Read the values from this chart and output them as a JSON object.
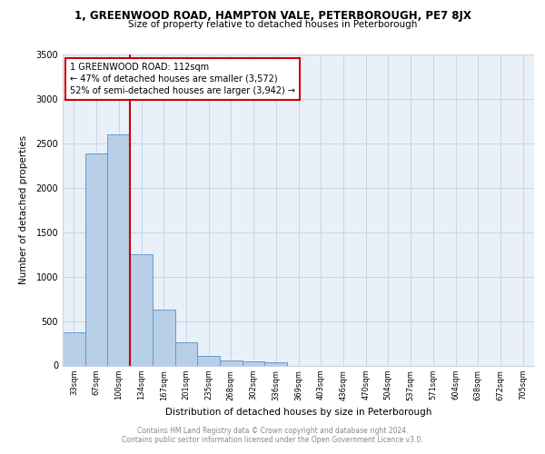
{
  "title_line1": "1, GREENWOOD ROAD, HAMPTON VALE, PETERBOROUGH, PE7 8JX",
  "title_line2": "Size of property relative to detached houses in Peterborough",
  "xlabel": "Distribution of detached houses by size in Peterborough",
  "ylabel": "Number of detached properties",
  "footnote1": "Contains HM Land Registry data © Crown copyright and database right 2024.",
  "footnote2": "Contains public sector information licensed under the Open Government Licence v3.0.",
  "bar_labels": [
    "33sqm",
    "67sqm",
    "100sqm",
    "134sqm",
    "167sqm",
    "201sqm",
    "235sqm",
    "268sqm",
    "302sqm",
    "336sqm",
    "369sqm",
    "403sqm",
    "436sqm",
    "470sqm",
    "504sqm",
    "537sqm",
    "571sqm",
    "604sqm",
    "638sqm",
    "672sqm",
    "705sqm"
  ],
  "bar_values": [
    370,
    2390,
    2600,
    1250,
    630,
    260,
    105,
    55,
    45,
    35,
    0,
    0,
    0,
    0,
    0,
    0,
    0,
    0,
    0,
    0,
    0
  ],
  "bar_color": "#b8cfe8",
  "bar_edgecolor": "#6699cc",
  "vline_x": 2.5,
  "vline_color": "#cc0000",
  "annotation_text": "1 GREENWOOD ROAD: 112sqm\n← 47% of detached houses are smaller (3,572)\n52% of semi-detached houses are larger (3,942) →",
  "annotation_box_edgecolor": "#cc0000",
  "annotation_box_facecolor": "white",
  "ylim": [
    0,
    3500
  ],
  "yticks": [
    0,
    500,
    1000,
    1500,
    2000,
    2500,
    3000,
    3500
  ],
  "grid_color": "#c8d4e8",
  "bg_color": "#eaf0f8"
}
